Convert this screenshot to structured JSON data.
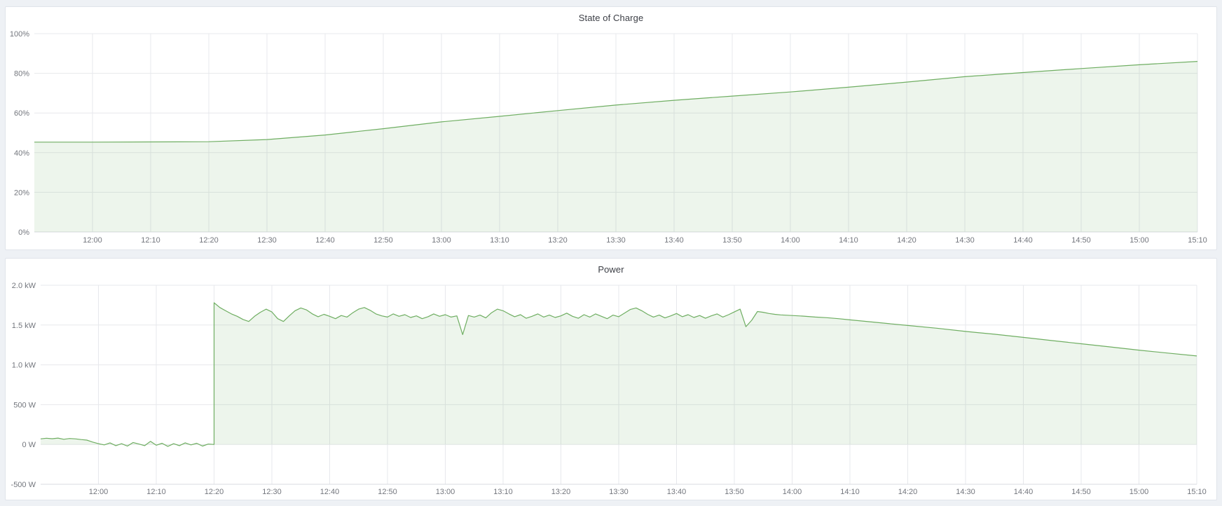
{
  "colors": {
    "line": "#6fae62",
    "fill": "rgba(111,174,98,0.12)",
    "grid": "#e7e8ec",
    "axis_line": "#d9dbe0",
    "tick_text": "#73767d",
    "title_text": "#3c3f46",
    "panel_bg": "#ffffff",
    "panel_border": "#e0e4ea",
    "page_bg": "#eef1f5"
  },
  "chart_data": [
    {
      "type": "area",
      "title": "State of Charge",
      "xlabel": "",
      "ylabel": "",
      "legend": "none",
      "grid": "on",
      "x_start_time": "11:50",
      "x_end_time": "15:10",
      "t_range_minutes": [
        0,
        200
      ],
      "y_range": [
        0,
        100
      ],
      "fill_baseline": 0,
      "y_ticks": [
        {
          "v": 0,
          "label": "0%"
        },
        {
          "v": 20,
          "label": "20%"
        },
        {
          "v": 40,
          "label": "40%"
        },
        {
          "v": 60,
          "label": "60%"
        },
        {
          "v": 80,
          "label": "80%"
        },
        {
          "v": 100,
          "label": "100%"
        }
      ],
      "x_ticks": [
        {
          "t": 10,
          "label": "12:00"
        },
        {
          "t": 20,
          "label": "12:10"
        },
        {
          "t": 30,
          "label": "12:20"
        },
        {
          "t": 40,
          "label": "12:30"
        },
        {
          "t": 50,
          "label": "12:40"
        },
        {
          "t": 60,
          "label": "12:50"
        },
        {
          "t": 70,
          "label": "13:00"
        },
        {
          "t": 80,
          "label": "13:10"
        },
        {
          "t": 90,
          "label": "13:20"
        },
        {
          "t": 100,
          "label": "13:30"
        },
        {
          "t": 110,
          "label": "13:40"
        },
        {
          "t": 120,
          "label": "13:50"
        },
        {
          "t": 130,
          "label": "14:00"
        },
        {
          "t": 140,
          "label": "14:10"
        },
        {
          "t": 150,
          "label": "14:20"
        },
        {
          "t": 160,
          "label": "14:30"
        },
        {
          "t": 170,
          "label": "14:40"
        },
        {
          "t": 180,
          "label": "14:50"
        },
        {
          "t": 190,
          "label": "15:00"
        },
        {
          "t": 200,
          "label": "15:10"
        }
      ],
      "series": [
        {
          "name": "State of Charge (%)",
          "points": [
            [
              0,
              45.3
            ],
            [
              10,
              45.3
            ],
            [
              20,
              45.4
            ],
            [
              30,
              45.5
            ],
            [
              40,
              46.6
            ],
            [
              50,
              48.9
            ],
            [
              60,
              52.1
            ],
            [
              70,
              55.5
            ],
            [
              80,
              58.3
            ],
            [
              90,
              61.2
            ],
            [
              100,
              64.0
            ],
            [
              110,
              66.4
            ],
            [
              120,
              68.5
            ],
            [
              130,
              70.6
            ],
            [
              140,
              73.0
            ],
            [
              150,
              75.6
            ],
            [
              160,
              78.3
            ],
            [
              170,
              80.4
            ],
            [
              180,
              82.4
            ],
            [
              190,
              84.3
            ],
            [
              200,
              86.0
            ]
          ]
        }
      ]
    },
    {
      "type": "area",
      "title": "Power",
      "xlabel": "",
      "ylabel": "",
      "legend": "none",
      "grid": "on",
      "x_start_time": "11:50",
      "x_end_time": "15:10",
      "t_range_minutes": [
        0,
        200
      ],
      "y_range": [
        -500,
        2000
      ],
      "fill_baseline": 0,
      "y_ticks": [
        {
          "v": -500,
          "label": "-500 W"
        },
        {
          "v": 0,
          "label": "0 W"
        },
        {
          "v": 500,
          "label": "500 W"
        },
        {
          "v": 1000,
          "label": "1.0 kW"
        },
        {
          "v": 1500,
          "label": "1.5 kW"
        },
        {
          "v": 2000,
          "label": "2.0 kW"
        }
      ],
      "x_ticks": [
        {
          "t": 10,
          "label": "12:00"
        },
        {
          "t": 20,
          "label": "12:10"
        },
        {
          "t": 30,
          "label": "12:20"
        },
        {
          "t": 40,
          "label": "12:30"
        },
        {
          "t": 50,
          "label": "12:40"
        },
        {
          "t": 60,
          "label": "12:50"
        },
        {
          "t": 70,
          "label": "13:00"
        },
        {
          "t": 80,
          "label": "13:10"
        },
        {
          "t": 90,
          "label": "13:20"
        },
        {
          "t": 100,
          "label": "13:30"
        },
        {
          "t": 110,
          "label": "13:40"
        },
        {
          "t": 120,
          "label": "13:50"
        },
        {
          "t": 130,
          "label": "14:00"
        },
        {
          "t": 140,
          "label": "14:10"
        },
        {
          "t": 150,
          "label": "14:20"
        },
        {
          "t": 160,
          "label": "14:30"
        },
        {
          "t": 170,
          "label": "14:40"
        },
        {
          "t": 180,
          "label": "14:50"
        },
        {
          "t": 190,
          "label": "15:00"
        },
        {
          "t": 200,
          "label": "15:10"
        }
      ],
      "series": [
        {
          "name": "Power (W)",
          "points": [
            [
              0,
              70
            ],
            [
              1,
              78
            ],
            [
              2,
              72
            ],
            [
              3,
              80
            ],
            [
              4,
              65
            ],
            [
              5,
              75
            ],
            [
              6,
              70
            ],
            [
              7,
              62
            ],
            [
              8,
              55
            ],
            [
              9,
              30
            ],
            [
              10,
              10
            ],
            [
              11,
              -5
            ],
            [
              12,
              20
            ],
            [
              13,
              -15
            ],
            [
              14,
              10
            ],
            [
              15,
              -20
            ],
            [
              16,
              25
            ],
            [
              17,
              5
            ],
            [
              18,
              -15
            ],
            [
              19,
              40
            ],
            [
              20,
              -10
            ],
            [
              21,
              15
            ],
            [
              22,
              -25
            ],
            [
              23,
              10
            ],
            [
              24,
              -15
            ],
            [
              25,
              20
            ],
            [
              26,
              -5
            ],
            [
              27,
              15
            ],
            [
              28,
              -20
            ],
            [
              29,
              5
            ],
            [
              30,
              0
            ],
            [
              30,
              1780
            ],
            [
              31,
              1720
            ],
            [
              32,
              1680
            ],
            [
              33,
              1640
            ],
            [
              34,
              1610
            ],
            [
              35,
              1570
            ],
            [
              36,
              1545
            ],
            [
              37,
              1610
            ],
            [
              38,
              1660
            ],
            [
              39,
              1700
            ],
            [
              40,
              1665
            ],
            [
              41,
              1580
            ],
            [
              42,
              1545
            ],
            [
              43,
              1615
            ],
            [
              44,
              1680
            ],
            [
              45,
              1715
            ],
            [
              46,
              1690
            ],
            [
              47,
              1640
            ],
            [
              48,
              1605
            ],
            [
              49,
              1635
            ],
            [
              50,
              1610
            ],
            [
              51,
              1580
            ],
            [
              52,
              1620
            ],
            [
              53,
              1600
            ],
            [
              54,
              1655
            ],
            [
              55,
              1700
            ],
            [
              56,
              1720
            ],
            [
              57,
              1685
            ],
            [
              58,
              1640
            ],
            [
              59,
              1615
            ],
            [
              60,
              1600
            ],
            [
              61,
              1640
            ],
            [
              62,
              1610
            ],
            [
              63,
              1630
            ],
            [
              64,
              1595
            ],
            [
              65,
              1615
            ],
            [
              66,
              1580
            ],
            [
              67,
              1605
            ],
            [
              68,
              1640
            ],
            [
              69,
              1610
            ],
            [
              70,
              1630
            ],
            [
              71,
              1600
            ],
            [
              72,
              1615
            ],
            [
              73,
              1380
            ],
            [
              74,
              1620
            ],
            [
              75,
              1600
            ],
            [
              76,
              1625
            ],
            [
              77,
              1590
            ],
            [
              78,
              1655
            ],
            [
              79,
              1700
            ],
            [
              80,
              1680
            ],
            [
              81,
              1640
            ],
            [
              82,
              1605
            ],
            [
              83,
              1630
            ],
            [
              84,
              1585
            ],
            [
              85,
              1610
            ],
            [
              86,
              1640
            ],
            [
              87,
              1600
            ],
            [
              88,
              1625
            ],
            [
              89,
              1595
            ],
            [
              90,
              1615
            ],
            [
              91,
              1650
            ],
            [
              92,
              1610
            ],
            [
              93,
              1585
            ],
            [
              94,
              1630
            ],
            [
              95,
              1600
            ],
            [
              96,
              1640
            ],
            [
              97,
              1610
            ],
            [
              98,
              1580
            ],
            [
              99,
              1625
            ],
            [
              100,
              1605
            ],
            [
              101,
              1650
            ],
            [
              102,
              1695
            ],
            [
              103,
              1715
            ],
            [
              104,
              1680
            ],
            [
              105,
              1635
            ],
            [
              106,
              1600
            ],
            [
              107,
              1625
            ],
            [
              108,
              1590
            ],
            [
              109,
              1615
            ],
            [
              110,
              1645
            ],
            [
              111,
              1605
            ],
            [
              112,
              1630
            ],
            [
              113,
              1595
            ],
            [
              114,
              1620
            ],
            [
              115,
              1585
            ],
            [
              116,
              1615
            ],
            [
              117,
              1640
            ],
            [
              118,
              1600
            ],
            [
              119,
              1630
            ],
            [
              120,
              1665
            ],
            [
              121,
              1700
            ],
            [
              122,
              1480
            ],
            [
              123,
              1560
            ],
            [
              124,
              1670
            ],
            [
              125,
              1660
            ],
            [
              126,
              1645
            ],
            [
              127,
              1635
            ],
            [
              128,
              1628
            ],
            [
              130,
              1620
            ],
            [
              132,
              1612
            ],
            [
              134,
              1600
            ],
            [
              136,
              1592
            ],
            [
              138,
              1580
            ],
            [
              140,
              1565
            ],
            [
              145,
              1530
            ],
            [
              150,
              1495
            ],
            [
              155,
              1460
            ],
            [
              160,
              1420
            ],
            [
              165,
              1385
            ],
            [
              170,
              1345
            ],
            [
              175,
              1305
            ],
            [
              180,
              1265
            ],
            [
              185,
              1225
            ],
            [
              190,
              1185
            ],
            [
              195,
              1148
            ],
            [
              200,
              1112
            ]
          ]
        }
      ]
    }
  ]
}
